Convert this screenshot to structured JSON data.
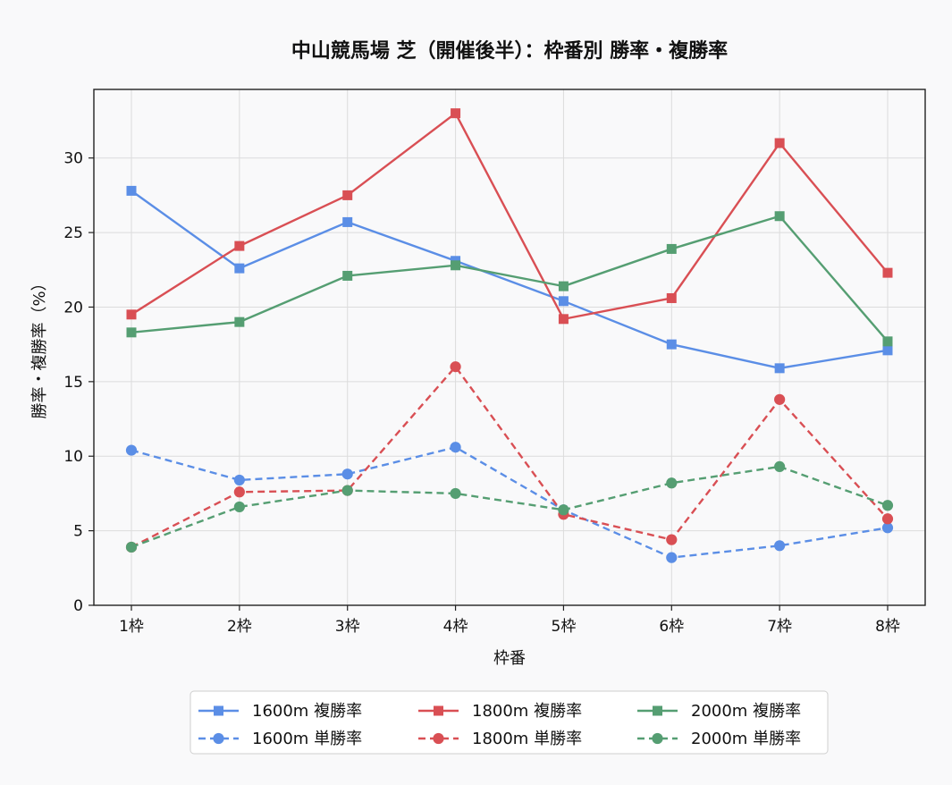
{
  "chart_data": {
    "type": "line",
    "title": "中山競馬場 芝（開催後半）：枠番別 勝率・複勝率",
    "xlabel": "枠番",
    "ylabel": "勝率・複勝率（%）",
    "categories": [
      "1枠",
      "2枠",
      "3枠",
      "4枠",
      "5枠",
      "6枠",
      "7枠",
      "8枠"
    ],
    "ylim": [
      0,
      34.6
    ],
    "yticks": [
      0,
      5,
      10,
      15,
      20,
      25,
      30
    ],
    "grid": true,
    "legend_position": "bottom-center",
    "series": [
      {
        "name": "1600m 複勝率",
        "color": "#5b8ee6",
        "style": "solid",
        "marker": "square",
        "values": [
          27.8,
          22.6,
          25.7,
          23.1,
          20.4,
          17.5,
          15.9,
          17.1
        ]
      },
      {
        "name": "1600m 単勝率",
        "color": "#5b8ee6",
        "style": "dashed",
        "marker": "circle",
        "values": [
          10.4,
          8.4,
          8.8,
          10.6,
          6.4,
          3.2,
          4.0,
          5.2
        ]
      },
      {
        "name": "1800m 複勝率",
        "color": "#d94f54",
        "style": "solid",
        "marker": "square",
        "values": [
          19.5,
          24.1,
          27.5,
          33.0,
          19.2,
          20.6,
          31.0,
          22.3
        ]
      },
      {
        "name": "1800m 単勝率",
        "color": "#d94f54",
        "style": "dashed",
        "marker": "circle",
        "values": [
          3.9,
          7.6,
          7.7,
          16.0,
          6.1,
          4.4,
          13.8,
          5.8
        ]
      },
      {
        "name": "2000m 複勝率",
        "color": "#559e72",
        "style": "solid",
        "marker": "square",
        "values": [
          18.3,
          19.0,
          22.1,
          22.8,
          21.4,
          23.9,
          26.1,
          17.7
        ]
      },
      {
        "name": "2000m 単勝率",
        "color": "#559e72",
        "style": "dashed",
        "marker": "circle",
        "values": [
          3.9,
          6.6,
          7.7,
          7.5,
          6.4,
          8.2,
          9.3,
          6.7
        ]
      }
    ]
  }
}
